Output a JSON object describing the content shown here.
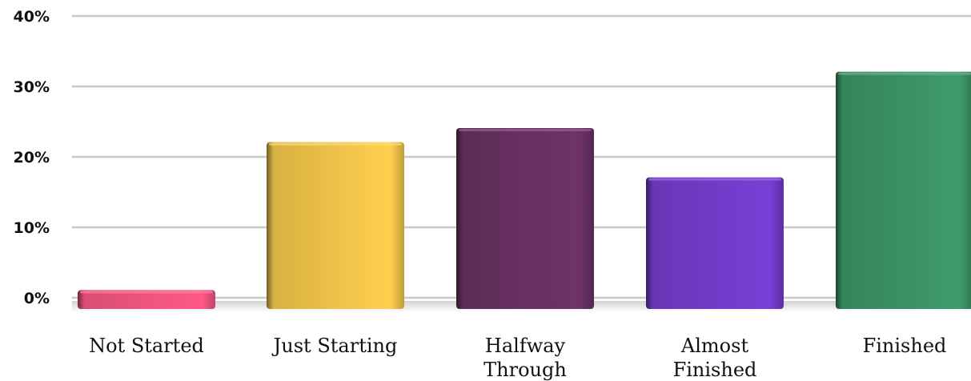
{
  "chart_data": {
    "type": "bar",
    "title": "",
    "xlabel": "",
    "ylabel": "",
    "categories": [
      "Not Started",
      "Just Starting",
      "Halfway Through",
      "Almost Finished",
      "Finished"
    ],
    "category_lines": [
      [
        "Not Started"
      ],
      [
        "Just Starting"
      ],
      [
        "Halfway",
        "Through"
      ],
      [
        "Almost",
        "Finished"
      ],
      [
        "Finished"
      ]
    ],
    "values": [
      2,
      23,
      25,
      18,
      33
    ],
    "colors": [
      "#ff5a87",
      "#ffd04f",
      "#6e3468",
      "#7a3fd6",
      "#3f9b6c"
    ],
    "ylim": [
      0,
      40
    ],
    "yticks": [
      0,
      10,
      20,
      30,
      40
    ],
    "ytick_labels": [
      "0%",
      "10%",
      "20%",
      "30%",
      "40%"
    ],
    "grid": true,
    "legend": "none"
  }
}
